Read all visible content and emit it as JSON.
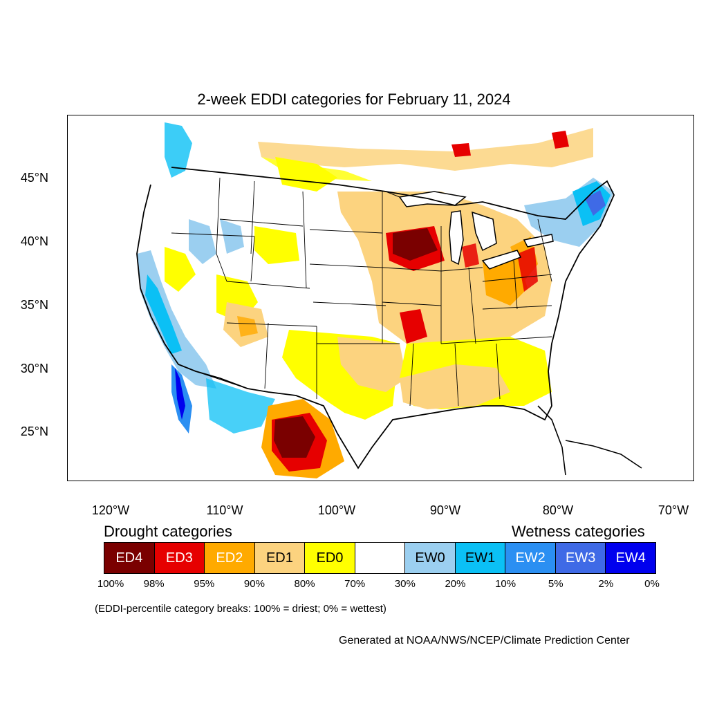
{
  "title": "2-week EDDI categories for February 11, 2024",
  "map": {
    "lat_labels": [
      "45°N",
      "40°N",
      "35°N",
      "30°N",
      "25°N"
    ],
    "lon_labels": [
      "120°W",
      "110°W",
      "100°W",
      "90°W",
      "80°W",
      "70°W"
    ],
    "colors": {
      "ED4": "#7a0000",
      "ED3": "#e60000",
      "ED2": "#ffaa00",
      "ED1": "#fcd37f",
      "ED0": "#ffff00",
      "neutral": "#ffffff",
      "EW0": "#9bcff0",
      "EW1": "#0bc0f5",
      "EW2": "#2b8ff2",
      "EW3": "#3f6ae6",
      "EW4": "#0000ee"
    }
  },
  "legend": {
    "drought_heading": "Drought categories",
    "wetness_heading": "Wetness categories",
    "categories": [
      {
        "label": "ED4",
        "color": "#7a0000",
        "text_color": "#ffffff"
      },
      {
        "label": "ED3",
        "color": "#e60000",
        "text_color": "#ffffff"
      },
      {
        "label": "ED2",
        "color": "#ffaa00",
        "text_color": "#ffffff"
      },
      {
        "label": "ED1",
        "color": "#fcd37f",
        "text_color": "#000000"
      },
      {
        "label": "ED0",
        "color": "#ffff00",
        "text_color": "#000000"
      },
      {
        "label": "",
        "color": "#ffffff",
        "text_color": "#000000"
      },
      {
        "label": "EW0",
        "color": "#9bcff0",
        "text_color": "#000000"
      },
      {
        "label": "EW1",
        "color": "#0bc0f5",
        "text_color": "#000000"
      },
      {
        "label": "EW2",
        "color": "#2b8ff2",
        "text_color": "#ffffff"
      },
      {
        "label": "EW3",
        "color": "#3f6ae6",
        "text_color": "#ffffff"
      },
      {
        "label": "EW4",
        "color": "#0000ee",
        "text_color": "#ffffff"
      }
    ],
    "percentiles": [
      "100%",
      "98%",
      "95%",
      "90%",
      "80%",
      "70%",
      "30%",
      "20%",
      "10%",
      "5%",
      "2%",
      "0%"
    ]
  },
  "note": "(EDDI-percentile category breaks: 100% = driest; 0% = wettest)",
  "credit": "Generated at NOAA/NWS/NCEP/Climate Prediction Center"
}
